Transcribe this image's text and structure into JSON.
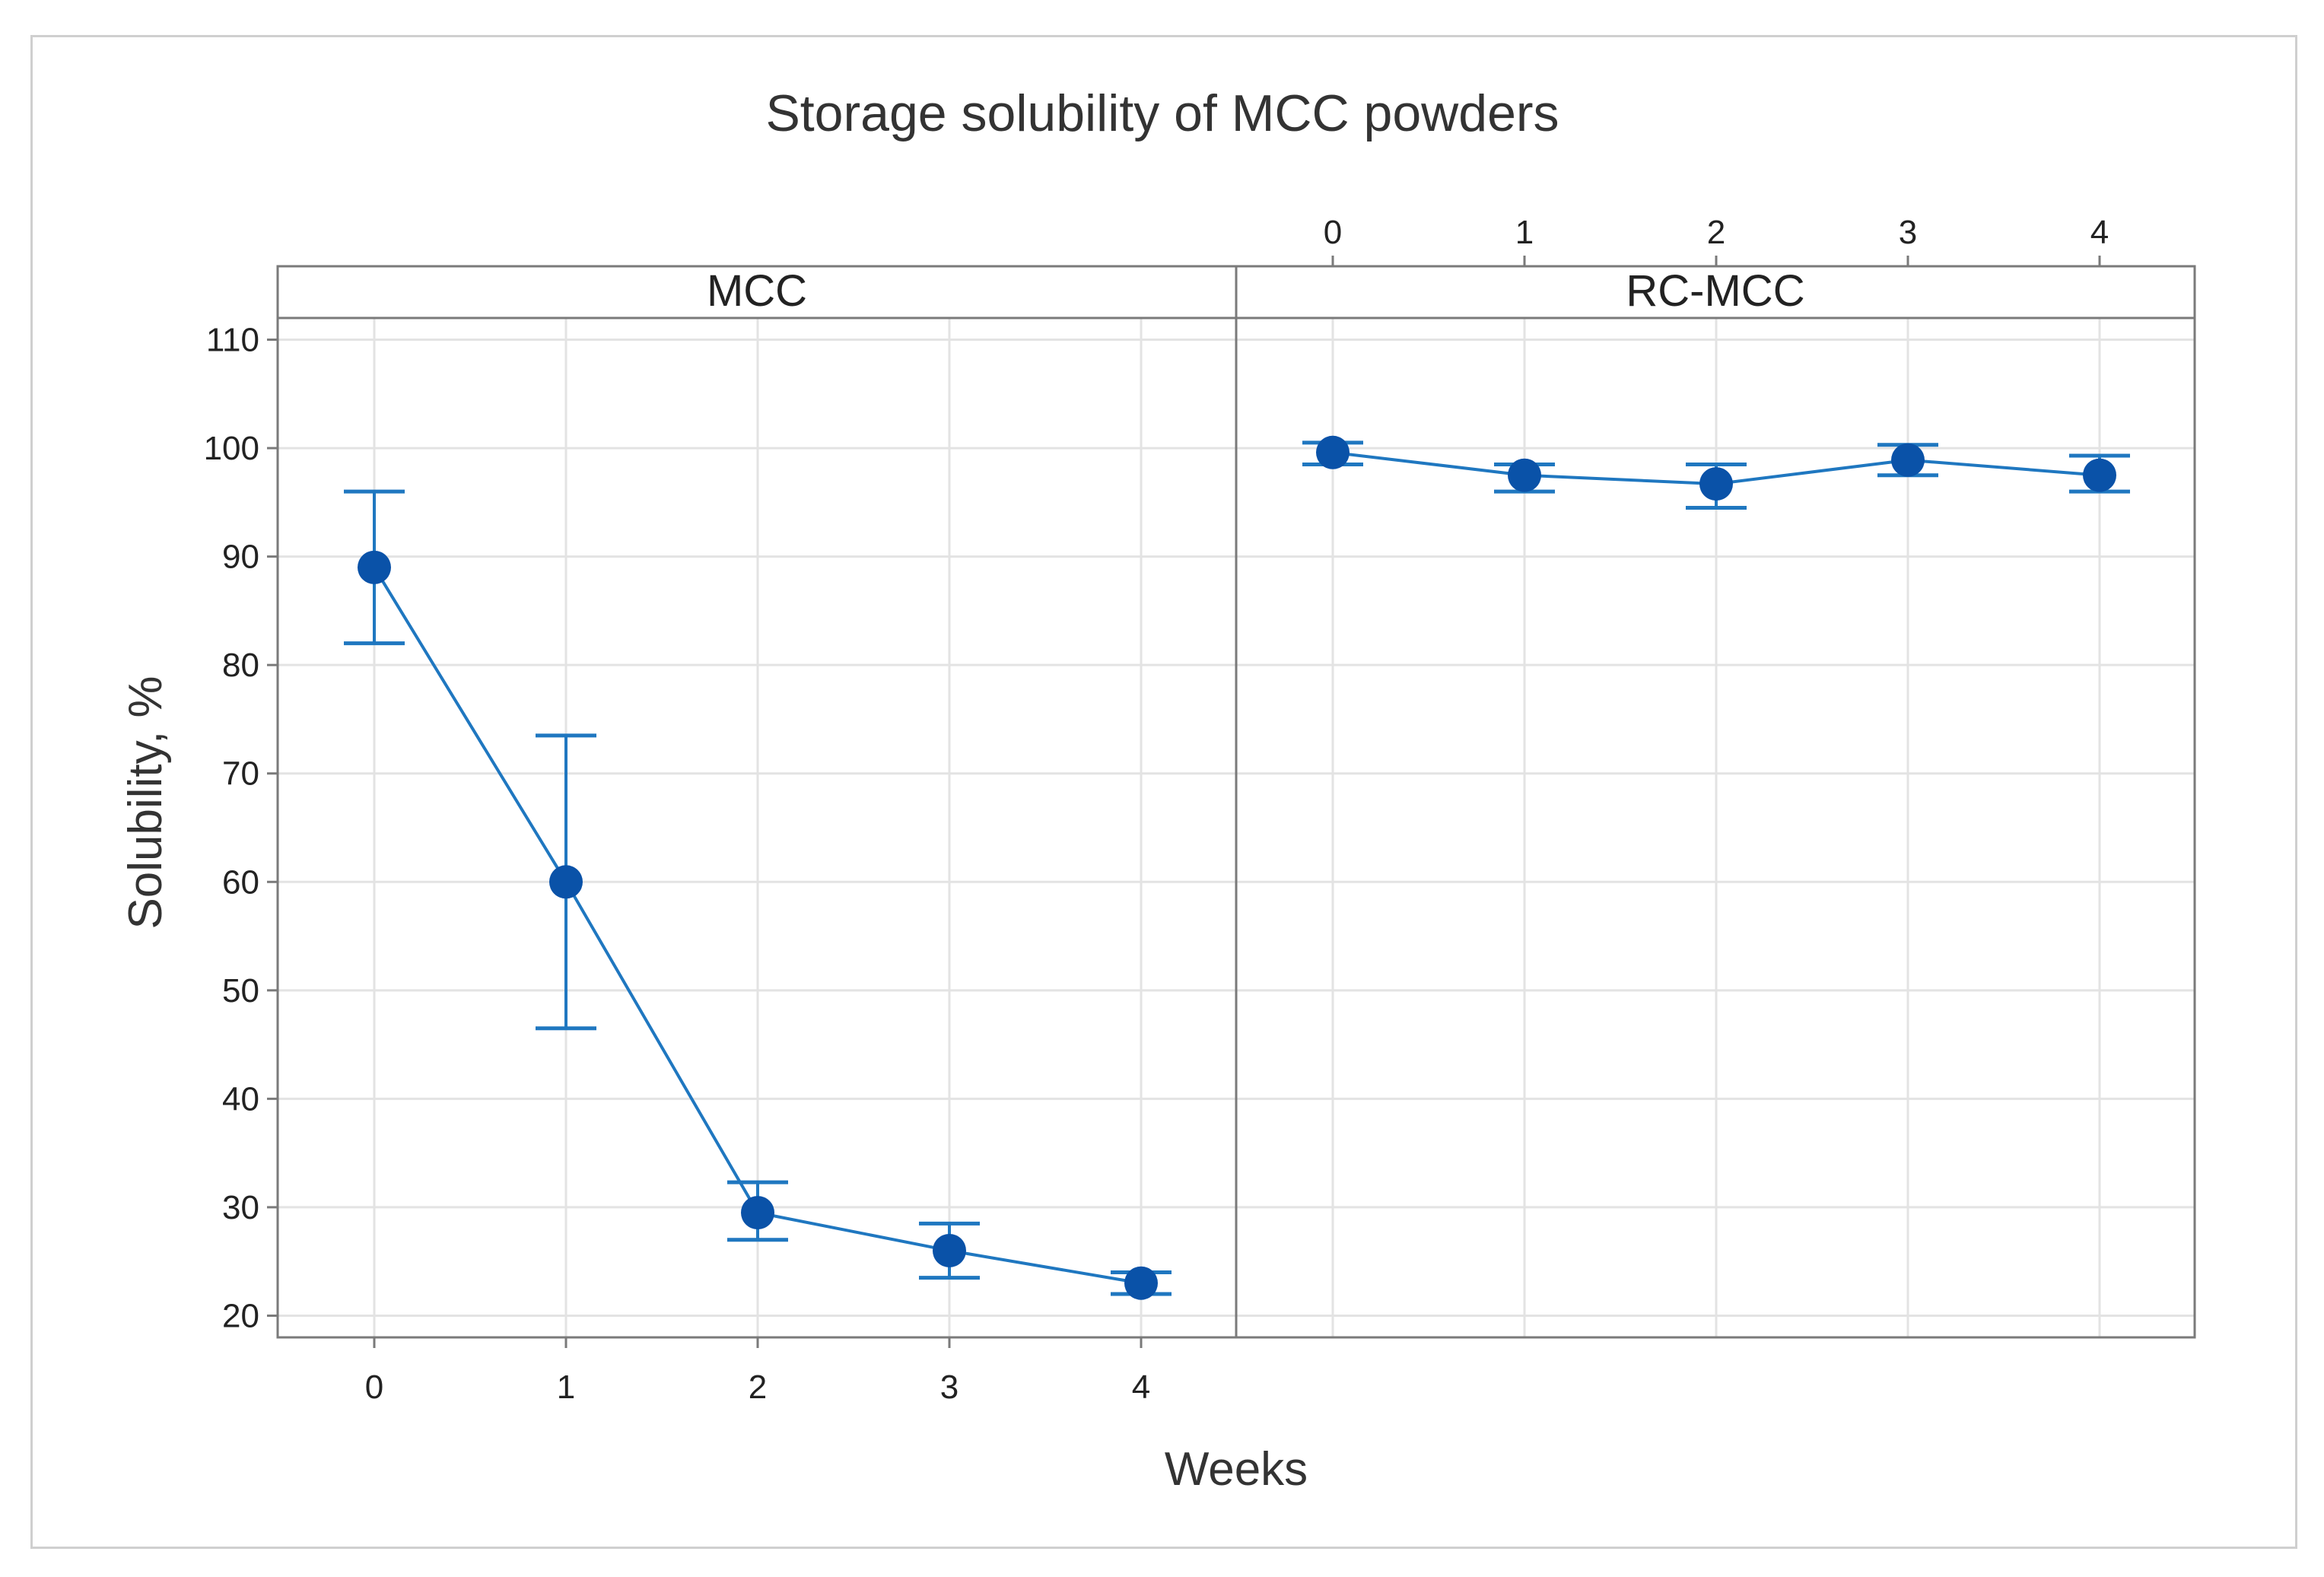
{
  "chart_data": {
    "type": "line",
    "title": "Storage solubility of MCC powders",
    "xlabel": "Weeks",
    "ylabel": "Solubility, %",
    "ylim": [
      18,
      112
    ],
    "yticks": [
      20,
      30,
      40,
      50,
      60,
      70,
      80,
      90,
      100,
      110
    ],
    "xticks": [
      0,
      1,
      2,
      3,
      4
    ],
    "grid": true,
    "colors": {
      "line": "#1f77c0",
      "marker": "#0a52a8",
      "grid": "#e3e3e3",
      "frame": "#7a7a7a"
    },
    "panels": [
      {
        "name": "MCC",
        "x": [
          0,
          1,
          2,
          3,
          4
        ],
        "y": [
          89,
          60,
          29.5,
          26,
          23
        ],
        "err_low": [
          82,
          46.5,
          27,
          23.5,
          22
        ],
        "err_high": [
          96,
          73.5,
          32.3,
          28.5,
          24
        ]
      },
      {
        "name": "RC-MCC",
        "x": [
          0,
          1,
          2,
          3,
          4
        ],
        "y": [
          99.6,
          97.5,
          96.7,
          98.9,
          97.5
        ],
        "err_low": [
          98.5,
          96,
          94.5,
          97.5,
          96
        ],
        "err_high": [
          100.5,
          98.5,
          98.5,
          100.3,
          99.3
        ]
      }
    ]
  }
}
